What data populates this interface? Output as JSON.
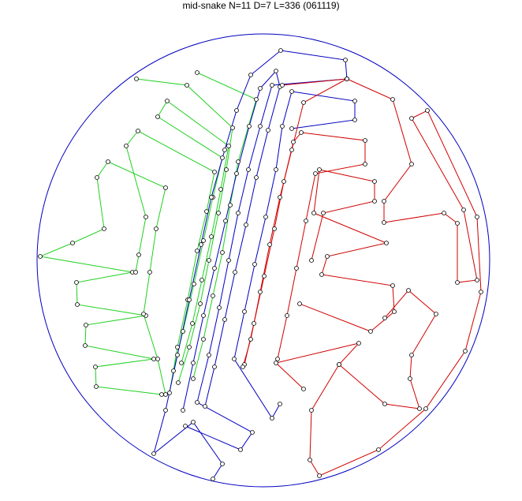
{
  "title": "mid-snake N=11 D=7 L=336 (061119)"
}
